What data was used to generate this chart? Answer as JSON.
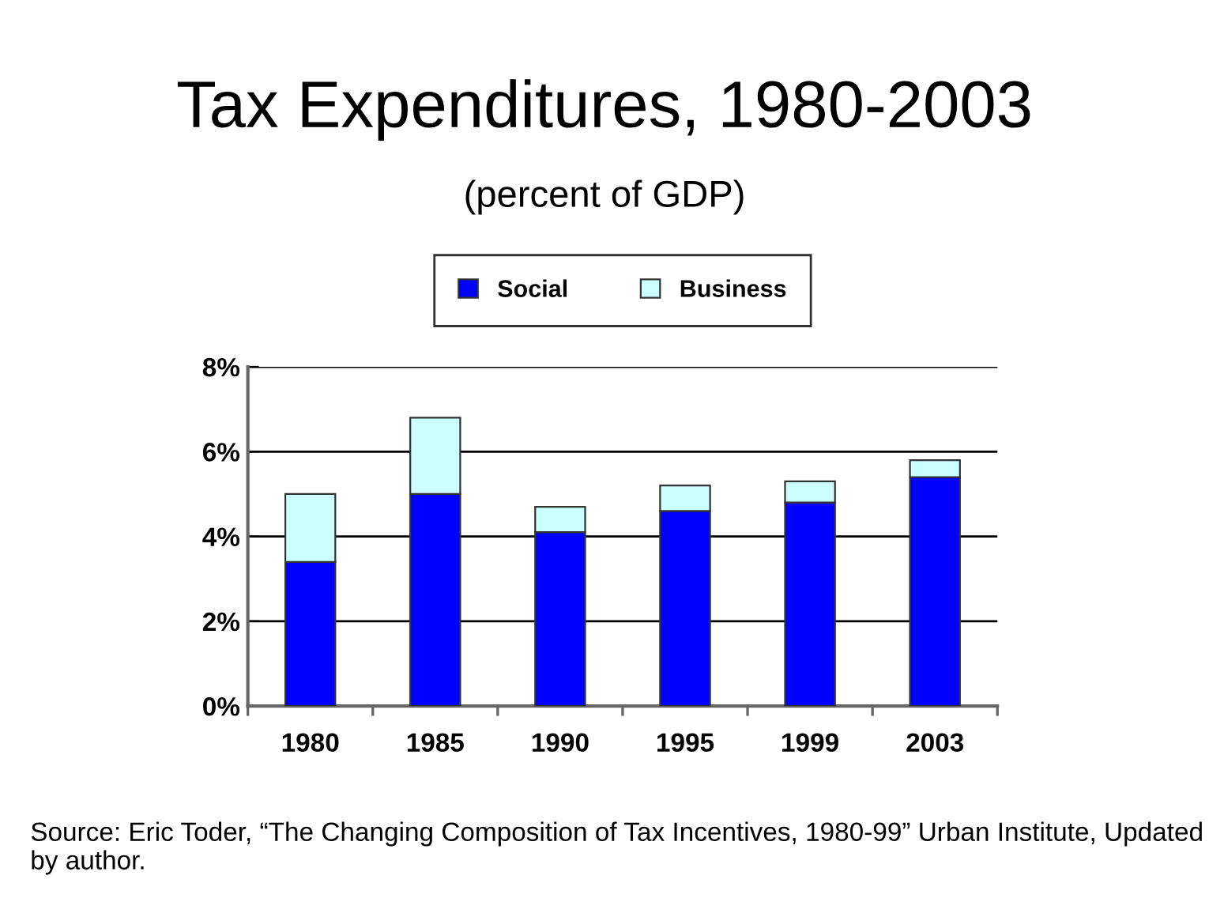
{
  "chart_data": {
    "type": "bar",
    "title": "Tax Expenditures, 1980-2003",
    "subtitle": "(percent of GDP)",
    "categories": [
      "1980",
      "1985",
      "1990",
      "1995",
      "1999",
      "2003"
    ],
    "stacked": true,
    "series": [
      {
        "name": "Social",
        "color": "#0000ff",
        "values": [
          3.4,
          5.0,
          4.1,
          4.6,
          4.8,
          5.4
        ]
      },
      {
        "name": "Business",
        "color": "#ccffff",
        "values": [
          1.6,
          1.8,
          0.6,
          0.6,
          0.5,
          0.4
        ]
      }
    ],
    "ylim": [
      0,
      8
    ],
    "yticks": [
      {
        "value": 0,
        "label": "0%"
      },
      {
        "value": 2,
        "label": "2%"
      },
      {
        "value": 4,
        "label": "4%"
      },
      {
        "value": 6,
        "label": "6%"
      },
      {
        "value": 8,
        "label": "8%"
      }
    ],
    "grid": "y",
    "legend": "top",
    "annotations": [
      "Source: Eric Toder, “The Changing Composition of Tax Incentives, 1980-99” Urban Institute, Updated by author."
    ]
  }
}
